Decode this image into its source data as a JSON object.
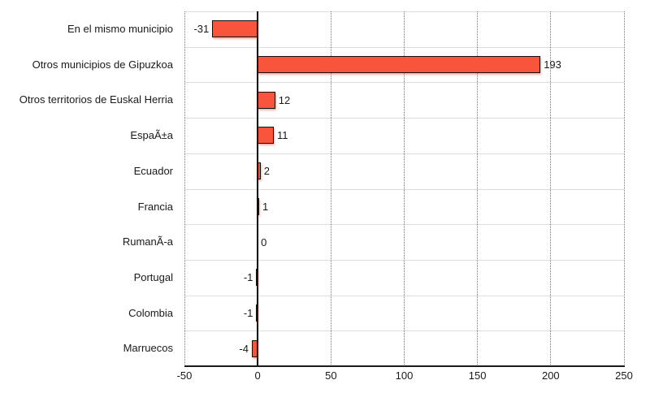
{
  "chart_data": {
    "type": "bar",
    "orientation": "horizontal",
    "title": "",
    "xlabel": "",
    "ylabel": "",
    "categories": [
      "En el mismo municipio",
      "Otros municipios de Gipuzkoa",
      "Otros territorios de Euskal Herria",
      "EspaÃ±a",
      "Ecuador",
      "Francia",
      "RumanÃ-a",
      "Portugal",
      "Colombia",
      "Marruecos"
    ],
    "values": [
      -31,
      193,
      12,
      11,
      2,
      1,
      0,
      -1,
      -1,
      -4
    ],
    "xlim": [
      -50,
      250
    ],
    "x_ticks": [
      -50,
      0,
      50,
      100,
      150,
      200,
      250
    ],
    "grid": "vertical dotted gridlines at x ticks, horizontal light row separators, solid black zero line",
    "legend_position": "none",
    "colors": {
      "bar_fill": "#F9543C",
      "bar_border": "#111111",
      "bar_shadow": "rgba(249,84,60,0.45)",
      "zero_line": "#000000",
      "axis_line": "#1a1a1a",
      "gridline": "#777777",
      "row_separator": "#dddddd",
      "text": "#1a1a1a",
      "background": "#ffffff"
    }
  }
}
